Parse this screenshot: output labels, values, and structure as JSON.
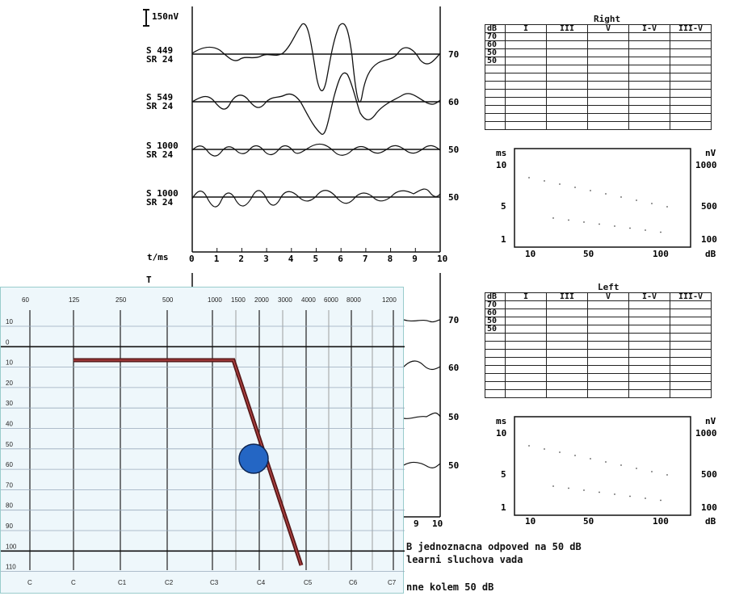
{
  "bera": {
    "scale_label": "150nV",
    "time_axis_label": "t/ms",
    "time_ticks": [
      "0",
      "1",
      "2",
      "3",
      "4",
      "5",
      "6",
      "7",
      "8",
      "9",
      "10"
    ],
    "bottom_ticks_visible": [
      "9",
      "10"
    ],
    "cursor_symbol": "T",
    "right_traces": [
      {
        "s_label": "S  449",
        "sr_label": "SR  24",
        "level": "70"
      },
      {
        "s_label": "S  549",
        "sr_label": "SR  24",
        "level": "60"
      },
      {
        "s_label": "S 1000",
        "sr_label": "SR  24",
        "level": "50"
      },
      {
        "s_label": "S 1000",
        "sr_label": "SR  24",
        "level": "50"
      }
    ],
    "left_trace_levels": [
      "70",
      "60",
      "50",
      "50"
    ]
  },
  "tables": {
    "right_title": "Right",
    "left_title": "Left",
    "headers": [
      "dB",
      "I",
      "III",
      "V",
      "I-V",
      "III-V"
    ],
    "db_rows": [
      "70",
      "60",
      "50",
      "50"
    ]
  },
  "latency_plots": {
    "left_axis_unit": "ms",
    "right_axis_unit": "nV",
    "x_axis_unit": "dB",
    "left_ticks": [
      "10",
      "5",
      "1"
    ],
    "right_ticks": [
      "1000",
      "500",
      "100"
    ],
    "x_ticks": [
      "10",
      "50",
      "100"
    ]
  },
  "notes": {
    "line1": "B jednoznacna odpoved na 50 dB",
    "line2": "learni sluchova vada",
    "line3": "nne kolem 50 dB"
  },
  "audiogram": {
    "freq_labels": [
      "60",
      "125",
      "250",
      "500",
      "1000",
      "1500",
      "2000",
      "3000",
      "4000",
      "6000",
      "8000",
      "1200"
    ],
    "note_labels": [
      "C",
      "C",
      "C1",
      "C2",
      "C3",
      "C4",
      "C5",
      "C6",
      "C7"
    ],
    "db_labels": [
      "10",
      "0",
      "10",
      "20",
      "30",
      "40",
      "50",
      "60",
      "70",
      "80",
      "90",
      "100",
      "110"
    ],
    "line_color": "#5a1a1a",
    "marker_color": "#2466c4"
  }
}
